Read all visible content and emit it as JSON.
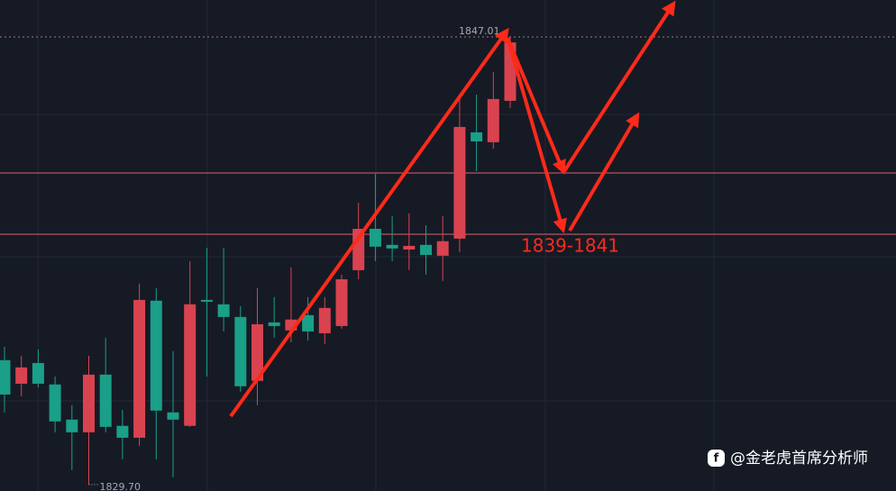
{
  "chart_data": {
    "type": "candlestick",
    "open": [
      1834.51,
      1833.6,
      1834.4,
      1833.57,
      1832.21,
      1831.72,
      1833.95,
      1831.97,
      1831.51,
      1836.81,
      1832.49,
      1831.97,
      1836.84,
      1836.67,
      1836.18,
      1833.71,
      1835.97,
      1835.66,
      1836.25,
      1835.55,
      1835.83,
      1837.99,
      1839.59,
      1838.97,
      1838.79,
      1838.97,
      1838.55,
      1839.21,
      1843.32,
      1842.94,
      1844.54
    ],
    "high": [
      1835.03,
      1834.68,
      1834.93,
      1833.88,
      1832.77,
      1834.68,
      1835.38,
      1832.59,
      1837.47,
      1837.29,
      1834.86,
      1838.34,
      1838.86,
      1838.86,
      1836.6,
      1837.29,
      1836.95,
      1838.1,
      1836.95,
      1836.95,
      1837.82,
      1840.6,
      1841.72,
      1840.08,
      1840.19,
      1839.73,
      1840.08,
      1844.61,
      1844.78,
      1845.65,
      1847.01
    ],
    "low": [
      1832.49,
      1833.11,
      1833.46,
      1831.72,
      1830.26,
      1829.7,
      1831.72,
      1830.68,
      1831.2,
      1830.68,
      1829.98,
      1831.93,
      1833.88,
      1835.62,
      1833.29,
      1832.77,
      1835.38,
      1835.2,
      1835.27,
      1835.14,
      1835.73,
      1837.64,
      1838.34,
      1838.34,
      1837.99,
      1837.82,
      1837.57,
      1838.69,
      1841.82,
      1842.69,
      1844.26
    ],
    "close": [
      1833.18,
      1834.23,
      1833.6,
      1832.14,
      1831.72,
      1833.95,
      1831.93,
      1831.51,
      1836.84,
      1832.56,
      1832.21,
      1836.67,
      1836.77,
      1836.18,
      1833.5,
      1835.9,
      1835.83,
      1836.08,
      1835.62,
      1836.53,
      1837.64,
      1839.59,
      1838.9,
      1838.83,
      1838.93,
      1838.58,
      1839.11,
      1843.53,
      1842.97,
      1844.61,
      1846.8
    ],
    "up_color": "#d9434f",
    "down_color": "#1a9f88",
    "ylim": [
      1829.45,
      1848.44
    ],
    "price_labels": [
      {
        "value": 1847.01,
        "label": "1847.01"
      },
      {
        "value": 1829.7,
        "label": "1829.70"
      }
    ],
    "levels": [
      1841.75,
      1839.38
    ],
    "level_color": "#d9636a",
    "level_label": "1839-1841",
    "watermark": "@金老虎首席分析师"
  }
}
